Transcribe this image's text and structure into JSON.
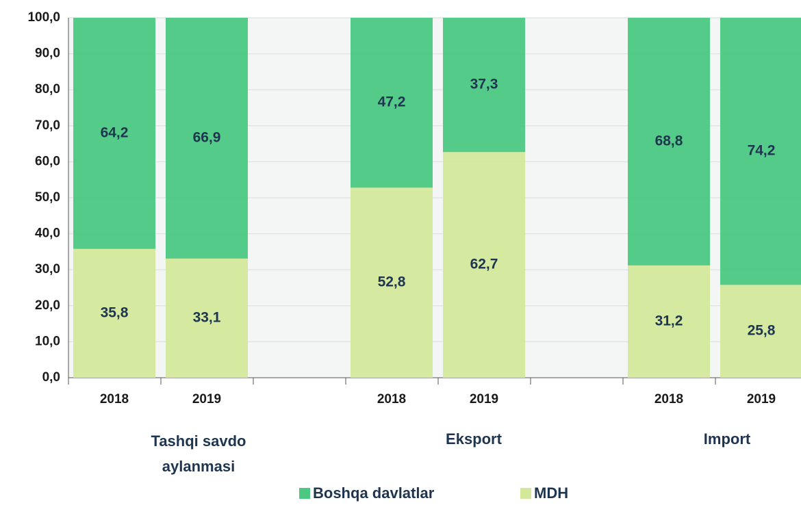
{
  "chart_data": {
    "type": "stacked_bar",
    "categories": [
      "2018",
      "2019",
      null,
      "2018",
      "2019",
      null,
      "2018",
      "2019"
    ],
    "groups": [
      "Tashqi savdo aylanmasi",
      "Eksport",
      "Import"
    ],
    "series": [
      {
        "name": "Boshqa davlatlar",
        "color": "#4cc883",
        "values": [
          64.2,
          66.9,
          null,
          47.2,
          37.3,
          null,
          68.8,
          74.2
        ],
        "value_labels": [
          "64,2",
          "66,9",
          null,
          "47,2",
          "37,3",
          null,
          "68,8",
          "74,2"
        ]
      },
      {
        "name": "MDH",
        "color": "#d3e89b",
        "values": [
          35.8,
          33.1,
          null,
          52.8,
          62.7,
          null,
          31.2,
          25.8
        ],
        "value_labels": [
          "35,8",
          "33,1",
          null,
          "52,8",
          "62,7",
          null,
          "31,2",
          "25,8"
        ]
      }
    ],
    "ylim": [
      0,
      100
    ],
    "yticks": [
      {
        "value": 0,
        "label": "0,0"
      },
      {
        "value": 10,
        "label": "10,0"
      },
      {
        "value": 20,
        "label": "20,0"
      },
      {
        "value": 30,
        "label": "30,0"
      },
      {
        "value": 40,
        "label": "40,0"
      },
      {
        "value": 50,
        "label": "50,0"
      },
      {
        "value": 60,
        "label": "60,0"
      },
      {
        "value": 70,
        "label": "70,0"
      },
      {
        "value": 80,
        "label": "80,0"
      },
      {
        "value": 90,
        "label": "90,0"
      },
      {
        "value": 100,
        "label": "100,0"
      }
    ],
    "grid": true,
    "legend": "bottom"
  }
}
